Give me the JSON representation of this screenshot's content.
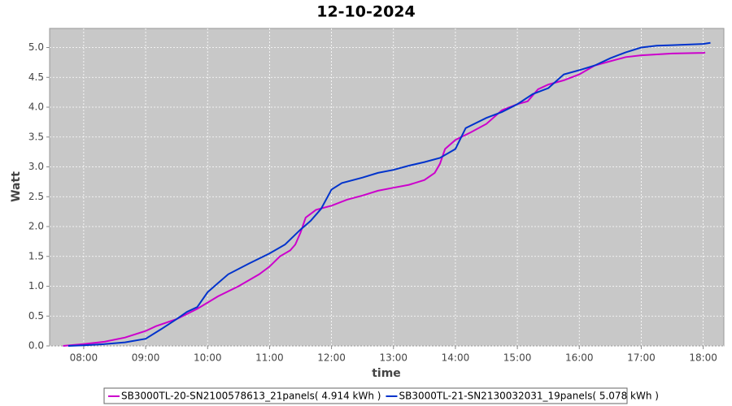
{
  "chart_data": {
    "type": "line",
    "title": "12-10-2024",
    "x_label": "time",
    "y_label": "Watt",
    "xlim": [
      "07:27",
      "18:20"
    ],
    "xticks": [
      "08:00",
      "09:00",
      "10:00",
      "11:00",
      "12:00",
      "13:00",
      "14:00",
      "15:00",
      "16:00",
      "17:00",
      "18:00"
    ],
    "ylim": [
      0,
      5.32
    ],
    "yticks": [
      {
        "value": 0,
        "label": "0.0"
      },
      {
        "value": 0.5,
        "label": "0.5"
      },
      {
        "value": 1,
        "label": "1.0"
      },
      {
        "value": 1.5,
        "label": "1.5"
      },
      {
        "value": 2,
        "label": "2.0"
      },
      {
        "value": 2.5,
        "label": "2.5"
      },
      {
        "value": 3,
        "label": "3.0"
      },
      {
        "value": 3.5,
        "label": "3.5"
      },
      {
        "value": 4,
        "label": "4.0"
      },
      {
        "value": 4.5,
        "label": "4.5"
      },
      {
        "value": 5,
        "label": "5.0"
      }
    ],
    "grid": true,
    "legend": "bottom",
    "series": [
      {
        "name": "SB3000TL-20-SN2100578613_21panels( 4.914 kWh )",
        "color": "#cc00cc",
        "x": [
          "07:40",
          "08:00",
          "08:20",
          "08:40",
          "09:00",
          "09:10",
          "09:30",
          "09:50",
          "10:10",
          "10:30",
          "10:50",
          "11:00",
          "11:10",
          "11:20",
          "11:25",
          "11:30",
          "11:35",
          "11:45",
          "12:00",
          "12:15",
          "12:30",
          "12:45",
          "13:00",
          "13:15",
          "13:30",
          "13:40",
          "13:45",
          "13:50",
          "14:00",
          "14:15",
          "14:30",
          "14:45",
          "15:00",
          "15:10",
          "15:20",
          "15:30",
          "15:45",
          "16:00",
          "16:15",
          "16:30",
          "16:45",
          "17:00",
          "17:30",
          "18:00",
          "18:02"
        ],
        "values": [
          0.0,
          0.03,
          0.07,
          0.14,
          0.25,
          0.33,
          0.45,
          0.62,
          0.83,
          1.0,
          1.2,
          1.33,
          1.5,
          1.6,
          1.7,
          1.9,
          2.15,
          2.28,
          2.35,
          2.45,
          2.52,
          2.6,
          2.65,
          2.7,
          2.78,
          2.9,
          3.05,
          3.3,
          3.45,
          3.58,
          3.72,
          3.95,
          4.05,
          4.1,
          4.3,
          4.38,
          4.45,
          4.55,
          4.7,
          4.77,
          4.84,
          4.87,
          4.9,
          4.91,
          4.914
        ]
      },
      {
        "name": "SB3000TL-21-SN2130032031_19panels( 5.078 kWh )",
        "color": "#0033cc",
        "x": [
          "07:45",
          "08:00",
          "08:20",
          "08:40",
          "09:00",
          "09:15",
          "09:30",
          "09:40",
          "09:50",
          "10:00",
          "10:10",
          "10:20",
          "10:40",
          "11:00",
          "11:15",
          "11:30",
          "11:40",
          "11:50",
          "12:00",
          "12:10",
          "12:30",
          "12:45",
          "13:00",
          "13:15",
          "13:30",
          "13:45",
          "14:00",
          "14:10",
          "14:30",
          "14:45",
          "15:00",
          "15:15",
          "15:30",
          "15:45",
          "16:00",
          "16:15",
          "16:30",
          "16:45",
          "17:00",
          "17:15",
          "17:30",
          "18:00",
          "18:07"
        ],
        "values": [
          0.0,
          0.01,
          0.03,
          0.06,
          0.12,
          0.28,
          0.45,
          0.57,
          0.65,
          0.9,
          1.05,
          1.2,
          1.38,
          1.55,
          1.7,
          1.95,
          2.1,
          2.3,
          2.62,
          2.73,
          2.82,
          2.9,
          2.95,
          3.02,
          3.08,
          3.15,
          3.3,
          3.65,
          3.82,
          3.92,
          4.05,
          4.22,
          4.32,
          4.55,
          4.62,
          4.7,
          4.82,
          4.92,
          5.0,
          5.03,
          5.04,
          5.06,
          5.078
        ]
      }
    ]
  }
}
